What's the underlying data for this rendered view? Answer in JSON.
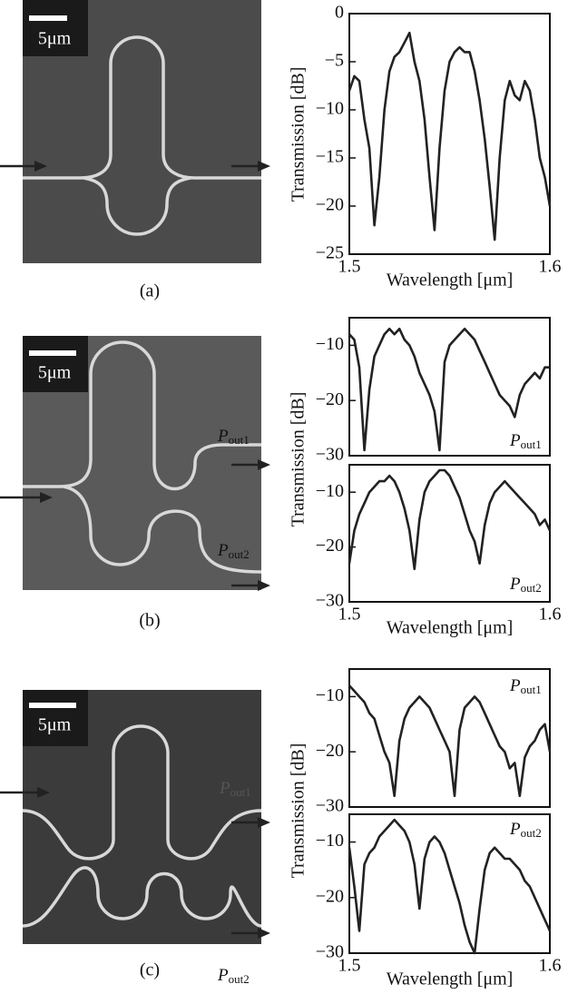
{
  "chart_data": [
    {
      "type": "line",
      "color": "#222222",
      "ylabel": "Transmission [dB]",
      "xlabel": "Wavelength [μm]",
      "xlim": [
        1.5,
        1.6
      ],
      "xticks": [
        1.5,
        1.6
      ],
      "ylim": [
        -25,
        0
      ],
      "yticks": [
        {
          "value": -25,
          "label": "−25"
        },
        {
          "value": -20,
          "label": "−20"
        },
        {
          "value": -15,
          "label": "−15"
        },
        {
          "value": -10,
          "label": "−10"
        },
        {
          "value": -5,
          "label": "−5"
        },
        0
      ],
      "x": [
        1.5,
        1.5025,
        1.505,
        1.5075,
        1.51,
        1.5125,
        1.515,
        1.5175,
        1.52,
        1.5225,
        1.525,
        1.5275,
        1.53,
        1.5325,
        1.535,
        1.5375,
        1.54,
        1.5425,
        1.545,
        1.5475,
        1.55,
        1.5525,
        1.555,
        1.5575,
        1.56,
        1.5625,
        1.565,
        1.5675,
        1.57,
        1.5725,
        1.575,
        1.5775,
        1.58,
        1.5825,
        1.585,
        1.5875,
        1.59,
        1.5925,
        1.595,
        1.5975,
        1.6
      ],
      "values": [
        -8,
        -6.5,
        -7,
        -11,
        -14,
        -22,
        -17,
        -10,
        -6,
        -4.5,
        -4,
        -3,
        -2,
        -5,
        -7,
        -11,
        -17,
        -22.5,
        -14,
        -8,
        -5,
        -4,
        -3.5,
        -4,
        -4,
        -6,
        -9,
        -13,
        -18,
        -23.5,
        -15,
        -9,
        -7,
        -8.5,
        -9,
        -7,
        -8,
        -11,
        -15,
        -17,
        -20
      ]
    },
    {
      "type": "line",
      "color": "#222222",
      "ylabel": "Transmission [dB]",
      "annotation": [
        "P",
        "out1"
      ],
      "xlim": [
        1.5,
        1.6
      ],
      "ylim": [
        -30,
        -5
      ],
      "yticks": [
        {
          "value": -30,
          "label": "−30"
        },
        {
          "value": -20,
          "label": "−20"
        },
        {
          "value": -10,
          "label": "−10"
        }
      ],
      "x": [
        1.5,
        1.5025,
        1.505,
        1.5075,
        1.51,
        1.5125,
        1.515,
        1.5175,
        1.52,
        1.5225,
        1.525,
        1.5275,
        1.53,
        1.5325,
        1.535,
        1.5375,
        1.54,
        1.5425,
        1.545,
        1.5475,
        1.55,
        1.5525,
        1.555,
        1.5575,
        1.56,
        1.5625,
        1.565,
        1.5675,
        1.57,
        1.5725,
        1.575,
        1.5775,
        1.58,
        1.5825,
        1.585,
        1.5875,
        1.59,
        1.5925,
        1.595,
        1.5975,
        1.6
      ],
      "values": [
        -8,
        -9,
        -14,
        -29,
        -18,
        -12,
        -10,
        -8,
        -7,
        -8,
        -7,
        -9,
        -10,
        -12,
        -15,
        -17,
        -19,
        -22,
        -29,
        -13,
        -10,
        -9,
        -8,
        -7,
        -8,
        -9,
        -11,
        -13,
        -15,
        -17,
        -19,
        -20,
        -21,
        -23,
        -19,
        -17,
        -16,
        -15,
        -16,
        -14,
        -14
      ]
    },
    {
      "type": "line",
      "color": "#222222",
      "xlabel": "Wavelength [μm]",
      "annotation": [
        "P",
        "out2"
      ],
      "xlim": [
        1.5,
        1.6
      ],
      "xticks": [
        1.5,
        1.6
      ],
      "ylim": [
        -30,
        -5
      ],
      "yticks": [
        {
          "value": -30,
          "label": "−30"
        },
        {
          "value": -20,
          "label": "−20"
        },
        {
          "value": -10,
          "label": "−10"
        }
      ],
      "x": [
        1.5,
        1.5025,
        1.505,
        1.5075,
        1.51,
        1.5125,
        1.515,
        1.5175,
        1.52,
        1.5225,
        1.525,
        1.5275,
        1.53,
        1.5325,
        1.535,
        1.5375,
        1.54,
        1.5425,
        1.545,
        1.5475,
        1.55,
        1.5525,
        1.555,
        1.5575,
        1.56,
        1.5625,
        1.565,
        1.5675,
        1.57,
        1.5725,
        1.575,
        1.5775,
        1.58,
        1.5825,
        1.585,
        1.5875,
        1.59,
        1.5925,
        1.595,
        1.5975,
        1.6
      ],
      "values": [
        -23,
        -17,
        -14,
        -12,
        -10,
        -9,
        -8,
        -8,
        -7,
        -8,
        -10,
        -13,
        -17,
        -24,
        -15,
        -10,
        -8,
        -7,
        -6,
        -6,
        -7,
        -9,
        -11,
        -14,
        -17,
        -19,
        -23,
        -16,
        -12,
        -10,
        -9,
        -8,
        -9,
        -10,
        -11,
        -12,
        -13,
        -14,
        -16,
        -15,
        -17
      ]
    },
    {
      "type": "line",
      "color": "#222222",
      "ylabel": "Transmission [dB]",
      "annotation": [
        "P",
        "out1"
      ],
      "xlim": [
        1.5,
        1.6
      ],
      "ylim": [
        -30,
        -5
      ],
      "yticks": [
        {
          "value": -30,
          "label": "−30"
        },
        {
          "value": -20,
          "label": "−20"
        },
        {
          "value": -10,
          "label": "−10"
        }
      ],
      "x": [
        1.5,
        1.5025,
        1.505,
        1.5075,
        1.51,
        1.5125,
        1.515,
        1.5175,
        1.52,
        1.5225,
        1.525,
        1.5275,
        1.53,
        1.5325,
        1.535,
        1.5375,
        1.54,
        1.5425,
        1.545,
        1.5475,
        1.55,
        1.5525,
        1.555,
        1.5575,
        1.56,
        1.5625,
        1.565,
        1.5675,
        1.57,
        1.5725,
        1.575,
        1.5775,
        1.58,
        1.5825,
        1.585,
        1.5875,
        1.59,
        1.5925,
        1.595,
        1.5975,
        1.6
      ],
      "values": [
        -8,
        -9,
        -10,
        -11,
        -13,
        -14,
        -17,
        -20,
        -22,
        -28,
        -18,
        -14,
        -12,
        -11,
        -10,
        -11,
        -12,
        -14,
        -16,
        -18,
        -20,
        -28,
        -16,
        -12,
        -11,
        -10,
        -11,
        -13,
        -15,
        -17,
        -19,
        -20,
        -23,
        -22,
        -28,
        -21,
        -19,
        -18,
        -16,
        -15,
        -20
      ]
    },
    {
      "type": "line",
      "color": "#222222",
      "xlabel": "Wavelength [μm]",
      "annotation": [
        "P",
        "out2"
      ],
      "xlim": [
        1.5,
        1.6
      ],
      "xticks": [
        1.5,
        1.6
      ],
      "ylim": [
        -30,
        -5
      ],
      "yticks": [
        {
          "value": -30,
          "label": "−30"
        },
        {
          "value": -20,
          "label": "−20"
        },
        {
          "value": -10,
          "label": "−10"
        }
      ],
      "x": [
        1.5,
        1.5025,
        1.505,
        1.5075,
        1.51,
        1.5125,
        1.515,
        1.5175,
        1.52,
        1.5225,
        1.525,
        1.5275,
        1.53,
        1.5325,
        1.535,
        1.5375,
        1.54,
        1.5425,
        1.545,
        1.5475,
        1.55,
        1.5525,
        1.555,
        1.5575,
        1.56,
        1.5625,
        1.565,
        1.5675,
        1.57,
        1.5725,
        1.575,
        1.5775,
        1.58,
        1.5825,
        1.585,
        1.5875,
        1.59,
        1.5925,
        1.595,
        1.5975,
        1.6
      ],
      "values": [
        -11,
        -18,
        -26,
        -14,
        -12,
        -11,
        -9,
        -8,
        -7,
        -6,
        -7,
        -8,
        -10,
        -14,
        -22,
        -13,
        -10,
        -9,
        -10,
        -12,
        -15,
        -18,
        -21,
        -25,
        -28,
        -30,
        -22,
        -15,
        -12,
        -11,
        -12,
        -13,
        -13,
        -14,
        -15,
        -17,
        -18,
        -20,
        -22,
        -24,
        -26
      ]
    }
  ],
  "images": [
    {
      "scale_bar": "5μm",
      "caption": "(a)"
    },
    {
      "scale_bar": "5μm",
      "caption": "(b)",
      "ports": [
        [
          "P",
          "out1"
        ],
        [
          "P",
          "out2"
        ]
      ]
    },
    {
      "scale_bar": "5μm",
      "caption": "(c)",
      "ports": [
        [
          "P",
          "out1"
        ],
        [
          "P",
          "out2"
        ]
      ]
    }
  ]
}
